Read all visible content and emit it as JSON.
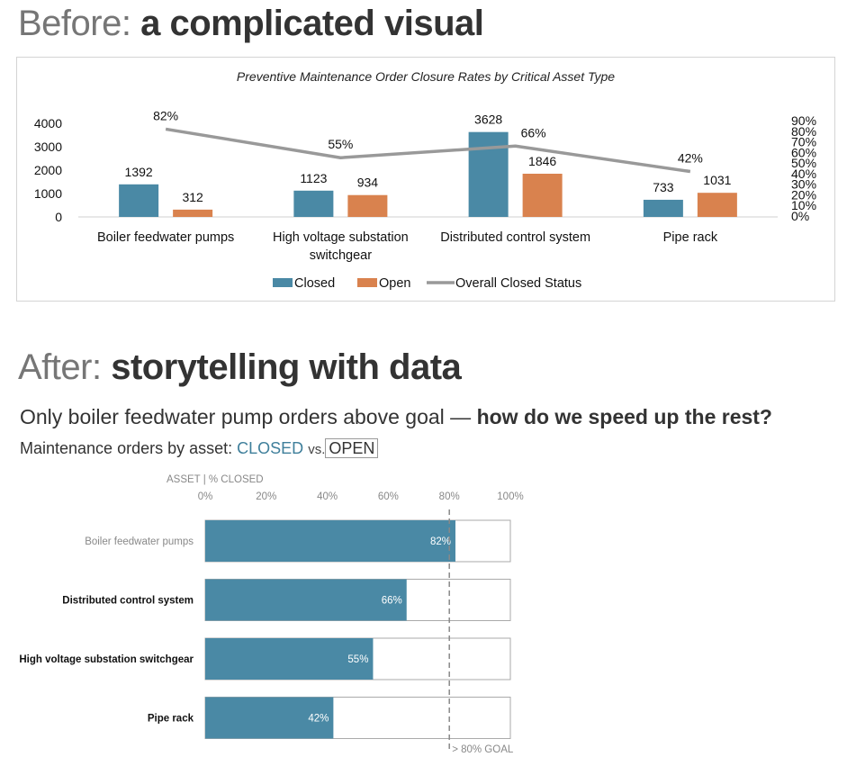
{
  "before_heading": {
    "prefix": "Before:",
    "bold": "a complicated visual"
  },
  "after_heading": {
    "prefix": "After:",
    "bold": "storytelling with data"
  },
  "headline": {
    "plain": "Only boiler feedwater pump orders above goal —",
    "bold": "how do we speed up the rest?"
  },
  "subhead": {
    "prefix": "Maintenance orders by asset:",
    "closed": "CLOSED",
    "vs": "vs.",
    "open": "OPEN"
  },
  "colors": {
    "closed": "#4a89a5",
    "open": "#d9824e",
    "line": "#999999",
    "text": "#333333"
  },
  "chart_data": [
    {
      "type": "bar",
      "title": "Preventive Maintenance Order Closure Rates by Critical Asset Type",
      "categories": [
        "Boiler feedwater pumps",
        "High voltage substation switchgear",
        "Distributed control system",
        "Pipe rack"
      ],
      "category_lines": [
        [
          "Boiler feedwater pumps"
        ],
        [
          "High voltage substation",
          "switchgear"
        ],
        [
          "Distributed control system"
        ],
        [
          "Pipe rack"
        ]
      ],
      "series": [
        {
          "name": "Closed",
          "values": [
            1392,
            1123,
            3628,
            733
          ],
          "labels": [
            "1392",
            "1123",
            "3628",
            "733"
          ]
        },
        {
          "name": "Open",
          "values": [
            312,
            934,
            1846,
            1031
          ],
          "labels": [
            "312",
            "934",
            "1846",
            "1031"
          ]
        }
      ],
      "line_series": {
        "name": "Overall Closed Status",
        "values": [
          82,
          55,
          66,
          42
        ],
        "labels": [
          "82%",
          "55%",
          "66%",
          "42%"
        ],
        "axis": "secondary"
      },
      "ylim": [
        0,
        4000
      ],
      "yticks": [
        "0",
        "1000",
        "2000",
        "3000",
        "4000"
      ],
      "y2lim": [
        0,
        90
      ],
      "y2ticks": [
        "0%",
        "10%",
        "20%",
        "30%",
        "40%",
        "50%",
        "60%",
        "70%",
        "80%",
        "90%"
      ],
      "legend": "bottom",
      "grid": false
    },
    {
      "type": "bar",
      "orientation": "horizontal",
      "axis_label": "ASSET | % CLOSED",
      "categories": [
        "Boiler feedwater pumps",
        "Distributed control system",
        "High voltage substation switchgear",
        "Pipe rack"
      ],
      "category_emphasis": [
        false,
        true,
        true,
        true
      ],
      "values": [
        82,
        66,
        55,
        42
      ],
      "labels": [
        "82%",
        "66%",
        "55%",
        "42%"
      ],
      "xlim": [
        0,
        100
      ],
      "xticks": [
        "0%",
        "20%",
        "40%",
        "60%",
        "80%",
        "100%"
      ],
      "goal": {
        "value": 80,
        "label": "> 80% GOAL"
      },
      "legend": "none",
      "grid": false
    }
  ]
}
